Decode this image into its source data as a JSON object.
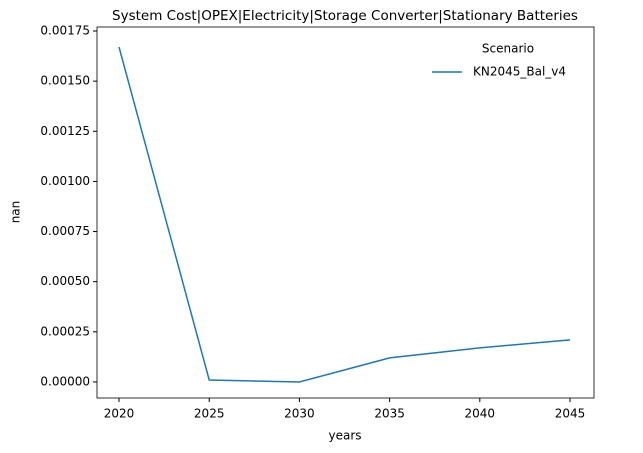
{
  "chart_data": {
    "type": "line",
    "title": "System Cost|OPEX|Electricity|Storage Converter|Stationary Batteries",
    "x_label": "years",
    "y_label": "nan",
    "x": [
      2020,
      2025,
      2030,
      2035,
      2040,
      2045
    ],
    "series": [
      {
        "name": "KN2045_Bal_v4",
        "color": "#1f77b4",
        "values": [
          0.00167,
          1e-05,
          0.0,
          0.00012,
          0.00017,
          0.00021
        ]
      }
    ],
    "legend_title": "Scenario",
    "legend": "upper right",
    "xlim": [
      2018.78,
      2046.33
    ],
    "xticks": [
      2020,
      2025,
      2030,
      2035,
      2040,
      2045
    ],
    "ylim": [
      -8e-05,
      0.00177
    ],
    "yticks": [
      {
        "value": 0,
        "label": "0.00000"
      },
      {
        "value": 0.00025,
        "label": "0.00025"
      },
      {
        "value": 0.0005,
        "label": "0.00050"
      },
      {
        "value": 0.00075,
        "label": "0.00075"
      },
      {
        "value": 0.001,
        "label": "0.00100"
      },
      {
        "value": 0.00125,
        "label": "0.00125"
      },
      {
        "value": 0.0015,
        "label": "0.00150"
      },
      {
        "value": 0.00175,
        "label": "0.00175"
      }
    ],
    "grid": false
  }
}
